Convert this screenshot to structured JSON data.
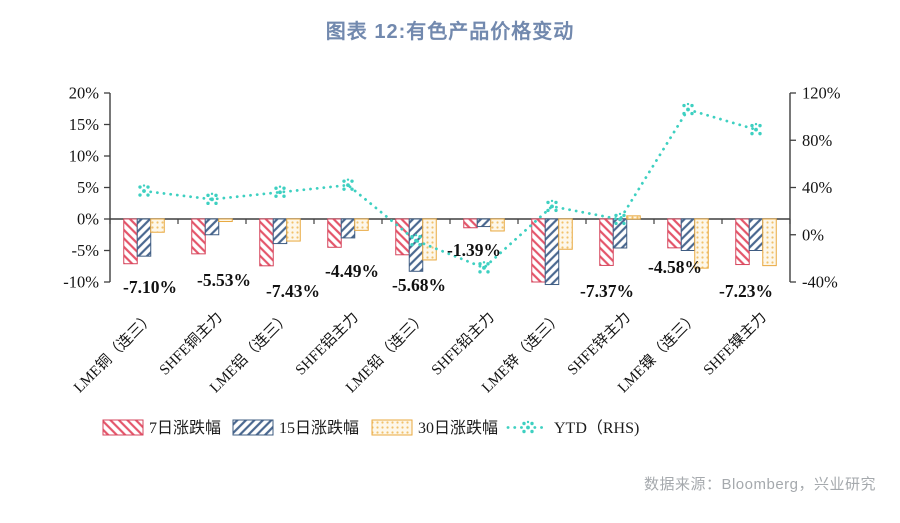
{
  "page": {
    "source": "数据来源：Bloomberg，兴业研究"
  },
  "chart_data": {
    "type": "bar",
    "title": "图表 12:有色产品价格变动",
    "categories": [
      "LME铜（连三）",
      "SHFE铜主力",
      "LME铝（连三）",
      "SHFE铝主力",
      "LME铅（连三）",
      "SHFE铅主力",
      "LME锌（连三）",
      "SHFE锌主力",
      "LME镍（连三）",
      "SHFE镍主力"
    ],
    "series": [
      {
        "name": "7日涨跌幅",
        "type": "bar",
        "axis": "left",
        "color": "#e4556a",
        "border": "#d6455c",
        "hatch": "backslash",
        "values": [
          -7.1,
          -5.53,
          -7.43,
          -4.49,
          -5.68,
          -1.39,
          -10.0,
          -7.37,
          -4.58,
          -7.23
        ]
      },
      {
        "name": "15日涨跌幅",
        "type": "bar",
        "axis": "left",
        "color": "#4a6890",
        "border": "#3f5c82",
        "hatch": "slash",
        "values": [
          -5.9,
          -2.5,
          -3.9,
          -3.0,
          -8.3,
          -1.2,
          -10.4,
          -4.6,
          -5.0,
          -5.0
        ]
      },
      {
        "name": "30日涨跌幅",
        "type": "bar",
        "axis": "left",
        "color": "#f2c26b",
        "border": "#e9a83f",
        "hatch": "dots",
        "values": [
          -2.1,
          -0.4,
          -3.5,
          -1.8,
          -6.5,
          -1.9,
          -4.8,
          0.5,
          -7.8,
          -7.4
        ]
      },
      {
        "name": "YTD（RHS)",
        "type": "line",
        "axis": "right",
        "color": "#3ed0c1",
        "style": "dotted",
        "values": [
          37,
          30,
          36,
          42,
          -5,
          -28,
          24,
          13,
          106,
          89
        ]
      }
    ],
    "bar_labels": [
      "-7.10%",
      "-5.53%",
      "-7.43%",
      "-4.49%",
      "-5.68%",
      "-1.39%",
      null,
      "-7.37%",
      "-4.58%",
      "-7.23%"
    ],
    "left_axis": {
      "min": -10,
      "max": 20,
      "ticks": [
        {
          "value": 20,
          "label": "20%"
        },
        {
          "value": 15,
          "label": "15%"
        },
        {
          "value": 10,
          "label": "10%"
        },
        {
          "value": 5,
          "label": "5%"
        },
        {
          "value": 0,
          "label": "0%"
        },
        {
          "value": -5,
          "label": "-5%"
        },
        {
          "value": -10,
          "label": "-10%"
        }
      ]
    },
    "right_axis": {
      "min": -40,
      "max": 120,
      "ticks": [
        {
          "value": 120,
          "label": "120%"
        },
        {
          "value": 80,
          "label": "80%"
        },
        {
          "value": 40,
          "label": "40%"
        },
        {
          "value": 0,
          "label": "0%"
        },
        {
          "value": -40,
          "label": "-40%"
        }
      ]
    },
    "legend_position": "bottom",
    "grid": false
  }
}
